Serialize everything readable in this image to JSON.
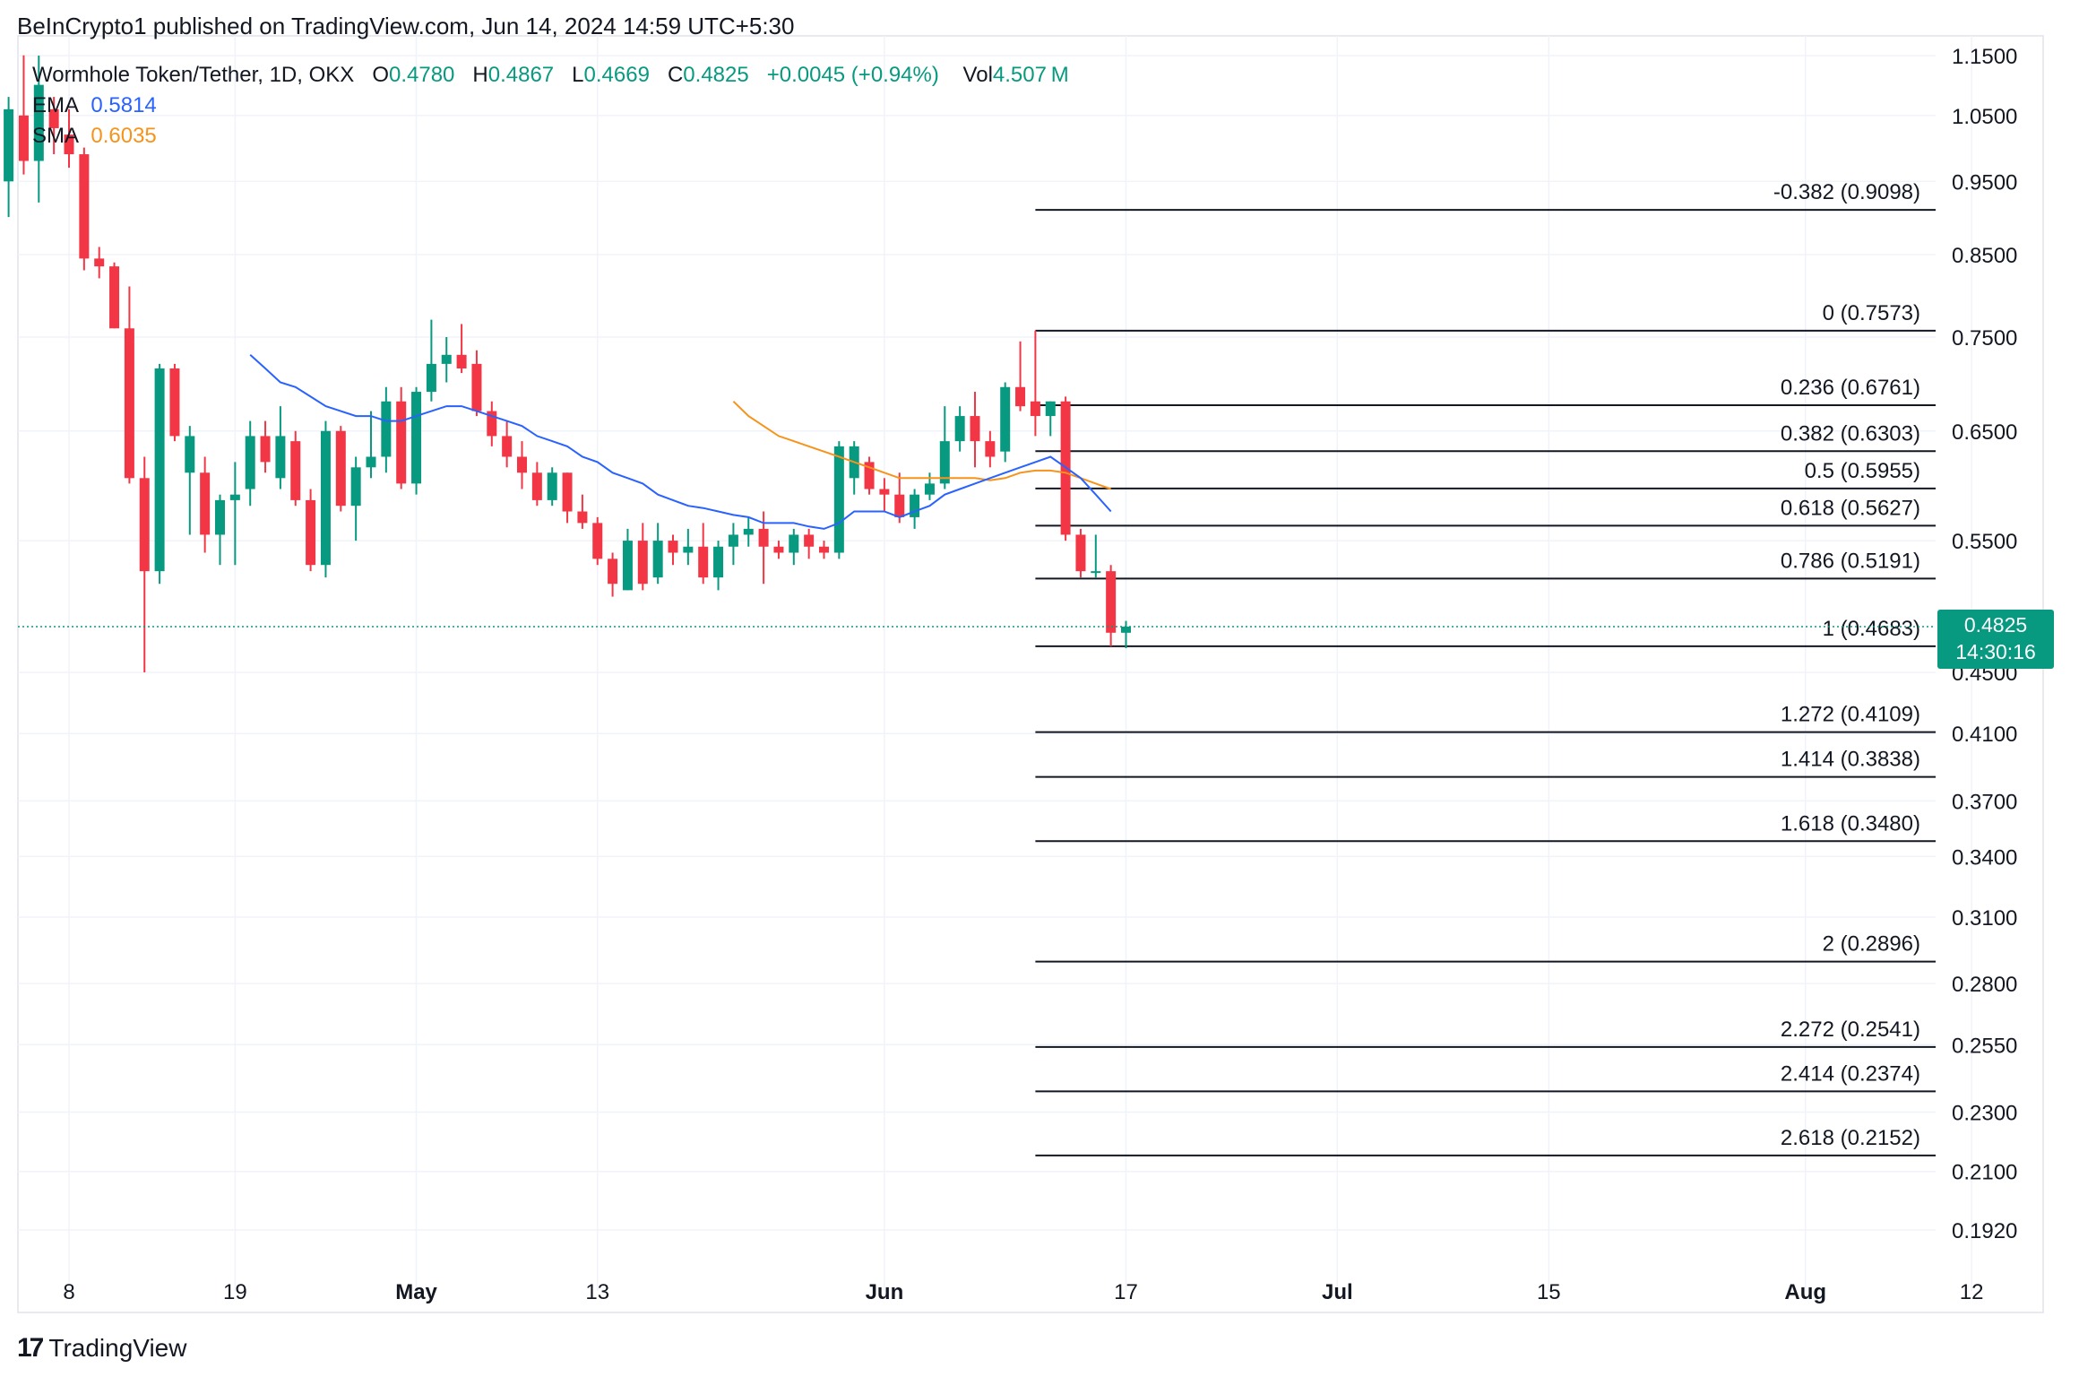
{
  "header": {
    "publisher": "BeInCrypto1 published on TradingView.com, Jun 14, 2024 14:59 UTC+5:30"
  },
  "legend": {
    "symbol": "Wormhole Token/Tether, 1D, OKX",
    "o_label": "O",
    "o_value": "0.4780",
    "h_label": "H",
    "h_value": "0.4867",
    "l_label": "L",
    "l_value": "0.4669",
    "c_label": "C",
    "c_value": "0.4825",
    "change": "+0.0045 (+0.94%)",
    "vol_label": "Vol",
    "vol_value": "4.507 M",
    "ema_label": "EMA",
    "ema_value": "0.5814",
    "sma_label": "SMA",
    "sma_value": "0.6035"
  },
  "price_tag": {
    "price": "0.4825",
    "countdown": "14:30:16"
  },
  "branding": {
    "name": "TradingView"
  },
  "colors": {
    "up": "#089981",
    "down": "#f23645",
    "ema": "#2962ff",
    "sma": "#f7931a",
    "grid": "#f0f3fa",
    "fib": "#131722"
  },
  "chart_data": {
    "type": "candlestick",
    "scale": "log",
    "ylim": [
      0.185,
      1.18
    ],
    "y_ticks": [
      "1.1500",
      "1.0500",
      "0.9500",
      "0.8500",
      "0.7500",
      "0.6500",
      "0.5500",
      "0.4500",
      "0.4100",
      "0.3700",
      "0.3400",
      "0.3100",
      "0.2800",
      "0.2550",
      "0.2300",
      "0.2100",
      "0.1920"
    ],
    "x_ticks": [
      {
        "label": "8",
        "day": 7
      },
      {
        "label": "19",
        "day": 18
      },
      {
        "label": "May",
        "day": 30
      },
      {
        "label": "13",
        "day": 42
      },
      {
        "label": "Jun",
        "day": 61
      },
      {
        "label": "17",
        "day": 77
      },
      {
        "label": "Jul",
        "day": 91
      },
      {
        "label": "15",
        "day": 105
      },
      {
        "label": "Aug",
        "day": 122
      },
      {
        "label": "12",
        "day": 133
      }
    ],
    "candles": [
      {
        "day": 3,
        "o": 0.95,
        "h": 1.08,
        "l": 0.9,
        "c": 1.06
      },
      {
        "day": 4,
        "o": 1.05,
        "h": 1.16,
        "l": 0.96,
        "c": 0.98
      },
      {
        "day": 5,
        "o": 0.98,
        "h": 1.15,
        "l": 0.92,
        "c": 1.1
      },
      {
        "day": 6,
        "o": 1.06,
        "h": 1.08,
        "l": 0.99,
        "c": 1.03
      },
      {
        "day": 7,
        "o": 1.02,
        "h": 1.06,
        "l": 0.97,
        "c": 0.99
      },
      {
        "day": 8,
        "o": 0.99,
        "h": 1.0,
        "l": 0.83,
        "c": 0.845
      },
      {
        "day": 9,
        "o": 0.845,
        "h": 0.86,
        "l": 0.82,
        "c": 0.835
      },
      {
        "day": 10,
        "o": 0.835,
        "h": 0.84,
        "l": 0.76,
        "c": 0.76
      },
      {
        "day": 11,
        "o": 0.76,
        "h": 0.81,
        "l": 0.6,
        "c": 0.605
      },
      {
        "day": 12,
        "o": 0.605,
        "h": 0.625,
        "l": 0.45,
        "c": 0.525
      },
      {
        "day": 13,
        "o": 0.525,
        "h": 0.72,
        "l": 0.515,
        "c": 0.715
      },
      {
        "day": 14,
        "o": 0.715,
        "h": 0.72,
        "l": 0.64,
        "c": 0.645
      },
      {
        "day": 15,
        "o": 0.61,
        "h": 0.655,
        "l": 0.555,
        "c": 0.645
      },
      {
        "day": 16,
        "o": 0.61,
        "h": 0.625,
        "l": 0.54,
        "c": 0.555
      },
      {
        "day": 17,
        "o": 0.555,
        "h": 0.59,
        "l": 0.53,
        "c": 0.585
      },
      {
        "day": 18,
        "o": 0.585,
        "h": 0.62,
        "l": 0.53,
        "c": 0.59
      },
      {
        "day": 19,
        "o": 0.595,
        "h": 0.66,
        "l": 0.58,
        "c": 0.645
      },
      {
        "day": 20,
        "o": 0.645,
        "h": 0.66,
        "l": 0.61,
        "c": 0.62
      },
      {
        "day": 21,
        "o": 0.605,
        "h": 0.675,
        "l": 0.595,
        "c": 0.645
      },
      {
        "day": 22,
        "o": 0.64,
        "h": 0.65,
        "l": 0.58,
        "c": 0.585
      },
      {
        "day": 23,
        "o": 0.585,
        "h": 0.595,
        "l": 0.525,
        "c": 0.53
      },
      {
        "day": 24,
        "o": 0.53,
        "h": 0.66,
        "l": 0.52,
        "c": 0.65
      },
      {
        "day": 25,
        "o": 0.65,
        "h": 0.655,
        "l": 0.575,
        "c": 0.58
      },
      {
        "day": 26,
        "o": 0.58,
        "h": 0.625,
        "l": 0.55,
        "c": 0.615
      },
      {
        "day": 27,
        "o": 0.615,
        "h": 0.67,
        "l": 0.605,
        "c": 0.625
      },
      {
        "day": 28,
        "o": 0.625,
        "h": 0.695,
        "l": 0.61,
        "c": 0.68
      },
      {
        "day": 29,
        "o": 0.68,
        "h": 0.695,
        "l": 0.595,
        "c": 0.6
      },
      {
        "day": 30,
        "o": 0.6,
        "h": 0.695,
        "l": 0.59,
        "c": 0.69
      },
      {
        "day": 31,
        "o": 0.69,
        "h": 0.77,
        "l": 0.68,
        "c": 0.72
      },
      {
        "day": 32,
        "o": 0.72,
        "h": 0.75,
        "l": 0.7,
        "c": 0.73
      },
      {
        "day": 33,
        "o": 0.73,
        "h": 0.765,
        "l": 0.71,
        "c": 0.715
      },
      {
        "day": 34,
        "o": 0.72,
        "h": 0.735,
        "l": 0.665,
        "c": 0.67
      },
      {
        "day": 35,
        "o": 0.67,
        "h": 0.68,
        "l": 0.635,
        "c": 0.645
      },
      {
        "day": 36,
        "o": 0.645,
        "h": 0.66,
        "l": 0.615,
        "c": 0.625
      },
      {
        "day": 37,
        "o": 0.625,
        "h": 0.64,
        "l": 0.595,
        "c": 0.61
      },
      {
        "day": 38,
        "o": 0.61,
        "h": 0.62,
        "l": 0.58,
        "c": 0.585
      },
      {
        "day": 39,
        "o": 0.585,
        "h": 0.615,
        "l": 0.58,
        "c": 0.61
      },
      {
        "day": 40,
        "o": 0.61,
        "h": 0.61,
        "l": 0.565,
        "c": 0.575
      },
      {
        "day": 41,
        "o": 0.575,
        "h": 0.59,
        "l": 0.56,
        "c": 0.565
      },
      {
        "day": 42,
        "o": 0.565,
        "h": 0.57,
        "l": 0.53,
        "c": 0.535
      },
      {
        "day": 43,
        "o": 0.535,
        "h": 0.54,
        "l": 0.505,
        "c": 0.515
      },
      {
        "day": 44,
        "o": 0.51,
        "h": 0.56,
        "l": 0.51,
        "c": 0.55
      },
      {
        "day": 45,
        "o": 0.55,
        "h": 0.565,
        "l": 0.51,
        "c": 0.515
      },
      {
        "day": 46,
        "o": 0.52,
        "h": 0.565,
        "l": 0.515,
        "c": 0.55
      },
      {
        "day": 47,
        "o": 0.55,
        "h": 0.555,
        "l": 0.53,
        "c": 0.54
      },
      {
        "day": 48,
        "o": 0.54,
        "h": 0.56,
        "l": 0.53,
        "c": 0.545
      },
      {
        "day": 49,
        "o": 0.545,
        "h": 0.565,
        "l": 0.515,
        "c": 0.52
      },
      {
        "day": 50,
        "o": 0.52,
        "h": 0.55,
        "l": 0.51,
        "c": 0.545
      },
      {
        "day": 51,
        "o": 0.545,
        "h": 0.565,
        "l": 0.53,
        "c": 0.555
      },
      {
        "day": 52,
        "o": 0.555,
        "h": 0.57,
        "l": 0.545,
        "c": 0.56
      },
      {
        "day": 53,
        "o": 0.56,
        "h": 0.575,
        "l": 0.515,
        "c": 0.545
      },
      {
        "day": 54,
        "o": 0.545,
        "h": 0.55,
        "l": 0.535,
        "c": 0.54
      },
      {
        "day": 55,
        "o": 0.54,
        "h": 0.56,
        "l": 0.53,
        "c": 0.555
      },
      {
        "day": 56,
        "o": 0.555,
        "h": 0.56,
        "l": 0.535,
        "c": 0.545
      },
      {
        "day": 57,
        "o": 0.545,
        "h": 0.55,
        "l": 0.535,
        "c": 0.54
      },
      {
        "day": 58,
        "o": 0.54,
        "h": 0.64,
        "l": 0.535,
        "c": 0.635
      },
      {
        "day": 59,
        "o": 0.605,
        "h": 0.64,
        "l": 0.59,
        "c": 0.635
      },
      {
        "day": 60,
        "o": 0.62,
        "h": 0.625,
        "l": 0.59,
        "c": 0.595
      },
      {
        "day": 61,
        "o": 0.595,
        "h": 0.605,
        "l": 0.575,
        "c": 0.59
      },
      {
        "day": 62,
        "o": 0.59,
        "h": 0.61,
        "l": 0.565,
        "c": 0.57
      },
      {
        "day": 63,
        "o": 0.57,
        "h": 0.595,
        "l": 0.56,
        "c": 0.59
      },
      {
        "day": 64,
        "o": 0.59,
        "h": 0.61,
        "l": 0.585,
        "c": 0.6
      },
      {
        "day": 65,
        "o": 0.6,
        "h": 0.675,
        "l": 0.595,
        "c": 0.64
      },
      {
        "day": 66,
        "o": 0.64,
        "h": 0.675,
        "l": 0.63,
        "c": 0.665
      },
      {
        "day": 67,
        "o": 0.665,
        "h": 0.69,
        "l": 0.615,
        "c": 0.64
      },
      {
        "day": 68,
        "o": 0.64,
        "h": 0.65,
        "l": 0.615,
        "c": 0.625
      },
      {
        "day": 69,
        "o": 0.63,
        "h": 0.7,
        "l": 0.62,
        "c": 0.695
      },
      {
        "day": 70,
        "o": 0.695,
        "h": 0.745,
        "l": 0.67,
        "c": 0.675
      },
      {
        "day": 71,
        "o": 0.68,
        "h": 0.7573,
        "l": 0.645,
        "c": 0.665
      },
      {
        "day": 72,
        "o": 0.665,
        "h": 0.68,
        "l": 0.645,
        "c": 0.68
      },
      {
        "day": 73,
        "o": 0.68,
        "h": 0.685,
        "l": 0.55,
        "c": 0.555
      },
      {
        "day": 74,
        "o": 0.555,
        "h": 0.56,
        "l": 0.52,
        "c": 0.525
      },
      {
        "day": 75,
        "o": 0.525,
        "h": 0.555,
        "l": 0.52,
        "c": 0.525
      },
      {
        "day": 76,
        "o": 0.525,
        "h": 0.53,
        "l": 0.4683,
        "c": 0.478
      },
      {
        "day": 77,
        "o": 0.478,
        "h": 0.4867,
        "l": 0.4669,
        "c": 0.4825
      }
    ],
    "ema": {
      "name": "EMA",
      "last": 0.5814,
      "points": [
        [
          19,
          0.73
        ],
        [
          20,
          0.715
        ],
        [
          21,
          0.7
        ],
        [
          22,
          0.695
        ],
        [
          23,
          0.685
        ],
        [
          24,
          0.675
        ],
        [
          25,
          0.67
        ],
        [
          26,
          0.665
        ],
        [
          27,
          0.665
        ],
        [
          28,
          0.66
        ],
        [
          29,
          0.66
        ],
        [
          30,
          0.665
        ],
        [
          31,
          0.67
        ],
        [
          32,
          0.675
        ],
        [
          33,
          0.675
        ],
        [
          34,
          0.67
        ],
        [
          35,
          0.665
        ],
        [
          36,
          0.66
        ],
        [
          37,
          0.655
        ],
        [
          38,
          0.645
        ],
        [
          39,
          0.64
        ],
        [
          40,
          0.635
        ],
        [
          41,
          0.625
        ],
        [
          42,
          0.62
        ],
        [
          43,
          0.61
        ],
        [
          44,
          0.605
        ],
        [
          45,
          0.6
        ],
        [
          46,
          0.59
        ],
        [
          47,
          0.585
        ],
        [
          48,
          0.58
        ],
        [
          49,
          0.578
        ],
        [
          50,
          0.575
        ],
        [
          51,
          0.572
        ],
        [
          52,
          0.57
        ],
        [
          53,
          0.565
        ],
        [
          54,
          0.565
        ],
        [
          55,
          0.565
        ],
        [
          56,
          0.562
        ],
        [
          57,
          0.56
        ],
        [
          58,
          0.565
        ],
        [
          59,
          0.575
        ],
        [
          60,
          0.575
        ],
        [
          61,
          0.575
        ],
        [
          62,
          0.57
        ],
        [
          63,
          0.575
        ],
        [
          64,
          0.58
        ],
        [
          65,
          0.59
        ],
        [
          66,
          0.595
        ],
        [
          67,
          0.6
        ],
        [
          68,
          0.605
        ],
        [
          69,
          0.61
        ],
        [
          70,
          0.615
        ],
        [
          71,
          0.62
        ],
        [
          72,
          0.625
        ],
        [
          73,
          0.615
        ],
        [
          74,
          0.605
        ],
        [
          75,
          0.59
        ],
        [
          76,
          0.575
        ]
      ]
    },
    "sma": {
      "name": "SMA",
      "last": 0.6035,
      "points": [
        [
          51,
          0.68
        ],
        [
          52,
          0.665
        ],
        [
          53,
          0.655
        ],
        [
          54,
          0.645
        ],
        [
          55,
          0.64
        ],
        [
          56,
          0.635
        ],
        [
          57,
          0.63
        ],
        [
          58,
          0.625
        ],
        [
          59,
          0.62
        ],
        [
          60,
          0.615
        ],
        [
          61,
          0.61
        ],
        [
          62,
          0.605
        ],
        [
          63,
          0.605
        ],
        [
          64,
          0.605
        ],
        [
          65,
          0.605
        ],
        [
          66,
          0.605
        ],
        [
          67,
          0.605
        ],
        [
          68,
          0.603
        ],
        [
          69,
          0.605
        ],
        [
          70,
          0.61
        ],
        [
          71,
          0.612
        ],
        [
          72,
          0.612
        ],
        [
          73,
          0.61
        ],
        [
          74,
          0.605
        ],
        [
          75,
          0.6
        ],
        [
          76,
          0.595
        ]
      ]
    },
    "fib_levels": [
      {
        "ratio": "-0.382",
        "price": "0.9098",
        "value": 0.9098
      },
      {
        "ratio": "0",
        "price": "0.7573",
        "value": 0.7573
      },
      {
        "ratio": "0.236",
        "price": "0.6761",
        "value": 0.6761
      },
      {
        "ratio": "0.382",
        "price": "0.6303",
        "value": 0.6303
      },
      {
        "ratio": "0.5",
        "price": "0.5955",
        "value": 0.5955
      },
      {
        "ratio": "0.618",
        "price": "0.5627",
        "value": 0.5627
      },
      {
        "ratio": "0.786",
        "price": "0.5191",
        "value": 0.5191
      },
      {
        "ratio": "1",
        "price": "0.4683",
        "value": 0.4683
      },
      {
        "ratio": "1.272",
        "price": "0.4109",
        "value": 0.4109
      },
      {
        "ratio": "1.414",
        "price": "0.3838",
        "value": 0.3838
      },
      {
        "ratio": "1.618",
        "price": "0.3480",
        "value": 0.348
      },
      {
        "ratio": "2",
        "price": "0.2896",
        "value": 0.2896
      },
      {
        "ratio": "2.272",
        "price": "0.2541",
        "value": 0.2541
      },
      {
        "ratio": "2.414",
        "price": "0.2374",
        "value": 0.2374
      },
      {
        "ratio": "2.618",
        "price": "0.2152",
        "value": 0.2152
      }
    ],
    "fib_start_day": 71,
    "fib_end_day": 133,
    "last_price": 0.4825,
    "grid": true
  }
}
